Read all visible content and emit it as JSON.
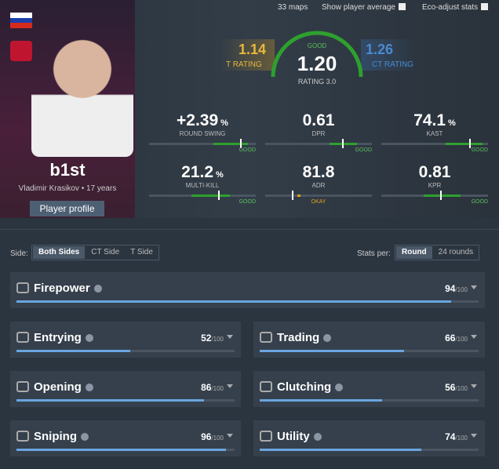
{
  "top_bar": {
    "maps": "33 maps",
    "show_player_average": "Show player average",
    "eco_adjust": "Eco-adjust stats"
  },
  "player": {
    "nickname": "b1st",
    "name_age": "Vladimir Krasikov • 17 years",
    "profile_button": "Player profile"
  },
  "rating": {
    "t_value": "1.14",
    "t_label": "T RATING",
    "overall_quality": "GOOD",
    "overall_value": "1.20",
    "overall_label": "RATING 3.0",
    "ct_value": "1.26",
    "ct_label": "CT RATING"
  },
  "stats": [
    {
      "value": "+2.39",
      "unit": "%",
      "label": "ROUND SWING",
      "quality": "GOOD"
    },
    {
      "value": "0.61",
      "label": "DPR",
      "quality": "GOOD"
    },
    {
      "value": "74.1",
      "unit": "%",
      "label": "KAST",
      "quality": "GOOD"
    },
    {
      "value": "21.2",
      "unit": "%",
      "label": "MULTI-KILL",
      "quality": "GOOD"
    },
    {
      "value": "81.8",
      "label": "ADR",
      "quality": "OKAY"
    },
    {
      "value": "0.81",
      "label": "KPR",
      "quality": "GOOD"
    }
  ],
  "filters": {
    "side_label": "Side:",
    "sides": [
      "Both Sides",
      "CT Side",
      "T Side"
    ],
    "stats_per_label": "Stats per:",
    "per": [
      "Round",
      "24 rounds"
    ]
  },
  "skills": [
    {
      "name": "Firepower",
      "score": 94,
      "suffix": "/100"
    },
    {
      "name": "Entrying",
      "score": 52,
      "suffix": "/100"
    },
    {
      "name": "Trading",
      "score": 66,
      "suffix": "/100"
    },
    {
      "name": "Opening",
      "score": 86,
      "suffix": "/100"
    },
    {
      "name": "Clutching",
      "score": 56,
      "suffix": "/100"
    },
    {
      "name": "Sniping",
      "score": 96,
      "suffix": "/100"
    },
    {
      "name": "Utility",
      "score": 74,
      "suffix": "/100"
    }
  ]
}
